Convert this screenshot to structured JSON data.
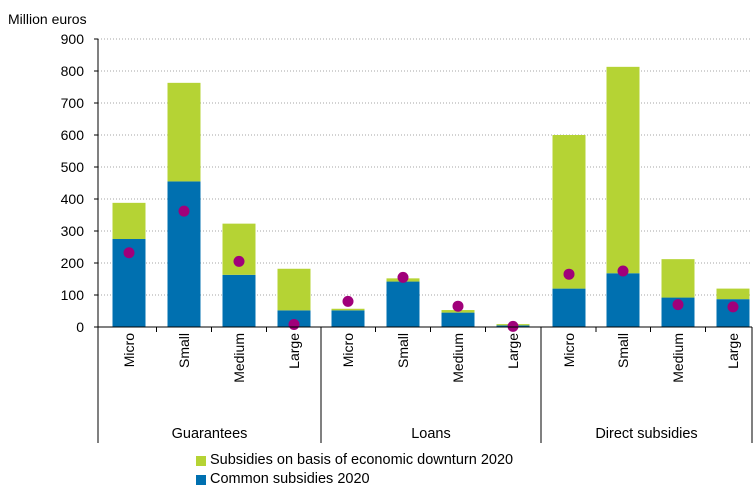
{
  "chart_data": {
    "type": "bar",
    "stacked": true,
    "ylabel": "Million euros",
    "ylim": [
      0,
      900
    ],
    "yticks": [
      0,
      100,
      200,
      300,
      400,
      500,
      600,
      700,
      800,
      900
    ],
    "grid": true,
    "legend_position": "bottom",
    "groups": [
      {
        "label": "Guarantees",
        "categories": [
          "Micro",
          "Small",
          "Medium",
          "Large"
        ]
      },
      {
        "label": "Loans",
        "categories": [
          "Micro",
          "Small",
          "Medium",
          "Large"
        ]
      },
      {
        "label": "Direct subsidies",
        "categories": [
          "Micro",
          "Small",
          "Medium",
          "Large"
        ]
      }
    ],
    "series": [
      {
        "name": "Common subsidies 2020",
        "color": "#0070b0",
        "values": [
          275,
          455,
          163,
          52,
          52,
          142,
          45,
          5,
          120,
          168,
          92,
          87
        ]
      },
      {
        "name": "Subsidies on basis of economic downturn 2020",
        "color": "#b5d334",
        "values": [
          113,
          308,
          160,
          130,
          5,
          10,
          8,
          4,
          480,
          645,
          120,
          33
        ]
      }
    ],
    "markers": {
      "color": "#a0007a",
      "values": [
        232,
        362,
        205,
        8,
        80,
        155,
        65,
        2,
        165,
        175,
        70,
        63
      ]
    },
    "legend": [
      {
        "label": "Subsidies on basis of economic downturn 2020",
        "color": "#b5d334"
      },
      {
        "label": "Common subsidies 2020",
        "color": "#0070b0"
      }
    ]
  }
}
